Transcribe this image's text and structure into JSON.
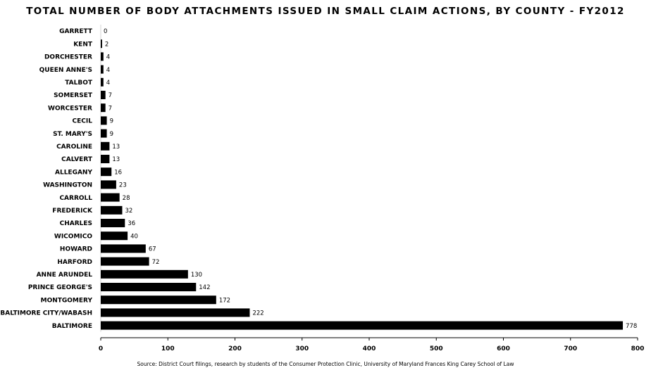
{
  "chart_data": {
    "type": "bar",
    "orientation": "horizontal",
    "title": "TOTAL NUMBER OF BODY ATTACHMENTS ISSUED IN SMALL CLAIM ACTIONS, BY COUNTY - FY2012",
    "source": "Source: District Court filings, research by students of the Consumer Protection Clinic, University of Maryland Frances King Carey School of Law",
    "categories": [
      "GARRETT",
      "KENT",
      "DORCHESTER",
      "QUEEN ANNE'S",
      "TALBOT",
      "SOMERSET",
      "WORCESTER",
      "CECIL",
      "ST. MARY'S",
      "CAROLINE",
      "CALVERT",
      "ALLEGANY",
      "WASHINGTON",
      "CARROLL",
      "FREDERICK",
      "CHARLES",
      "WICOMICO",
      "HOWARD",
      "HARFORD",
      "ANNE ARUNDEL",
      "PRINCE GEORGE'S",
      "MONTGOMERY",
      "BALTIMORE CITY/WABASH",
      "BALTIMORE"
    ],
    "values": [
      0,
      2,
      4,
      4,
      4,
      7,
      7,
      9,
      9,
      13,
      13,
      16,
      23,
      28,
      32,
      36,
      40,
      67,
      72,
      130,
      142,
      172,
      222,
      778
    ],
    "xlim": [
      0,
      800
    ],
    "xticks": [
      0,
      100,
      200,
      300,
      400,
      500,
      600,
      700,
      800
    ],
    "bar_color": "#000000",
    "grid": false,
    "data_labels": true
  }
}
